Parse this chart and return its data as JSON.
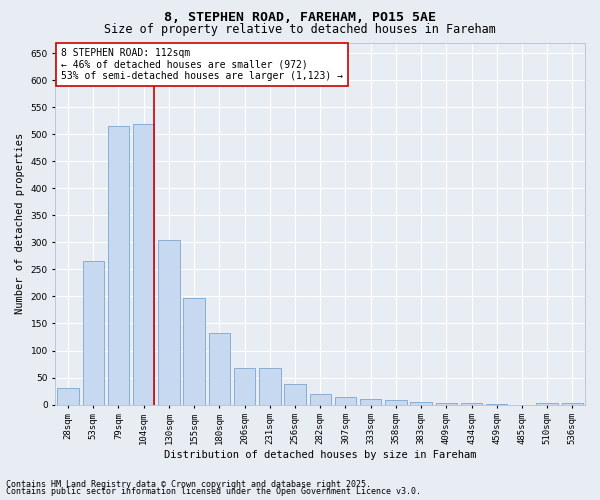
{
  "title_line1": "8, STEPHEN ROAD, FAREHAM, PO15 5AE",
  "title_line2": "Size of property relative to detached houses in Fareham",
  "xlabel": "Distribution of detached houses by size in Fareham",
  "ylabel": "Number of detached properties",
  "categories": [
    "28sqm",
    "53sqm",
    "79sqm",
    "104sqm",
    "130sqm",
    "155sqm",
    "180sqm",
    "206sqm",
    "231sqm",
    "256sqm",
    "282sqm",
    "307sqm",
    "333sqm",
    "358sqm",
    "383sqm",
    "409sqm",
    "434sqm",
    "459sqm",
    "485sqm",
    "510sqm",
    "536sqm"
  ],
  "values": [
    30,
    265,
    515,
    520,
    305,
    198,
    133,
    67,
    67,
    38,
    20,
    14,
    10,
    8,
    5,
    2,
    2,
    1,
    0,
    3,
    3
  ],
  "bar_color": "#c6d9f0",
  "bar_edge_color": "#7da6ce",
  "vline_color": "#cc0000",
  "vline_index": 3.425,
  "annotation_text": "8 STEPHEN ROAD: 112sqm\n← 46% of detached houses are smaller (972)\n53% of semi-detached houses are larger (1,123) →",
  "annotation_box_color": "#ffffff",
  "annotation_box_edge": "#cc0000",
  "ylim": [
    0,
    670
  ],
  "yticks": [
    0,
    50,
    100,
    150,
    200,
    250,
    300,
    350,
    400,
    450,
    500,
    550,
    600,
    650
  ],
  "background_color": "#e8edf4",
  "grid_color": "#ffffff",
  "footer_line1": "Contains HM Land Registry data © Crown copyright and database right 2025.",
  "footer_line2": "Contains public sector information licensed under the Open Government Licence v3.0.",
  "title_fontsize": 9.5,
  "subtitle_fontsize": 8.5,
  "axis_label_fontsize": 7.5,
  "tick_fontsize": 6.5,
  "annotation_fontsize": 7,
  "footer_fontsize": 6
}
